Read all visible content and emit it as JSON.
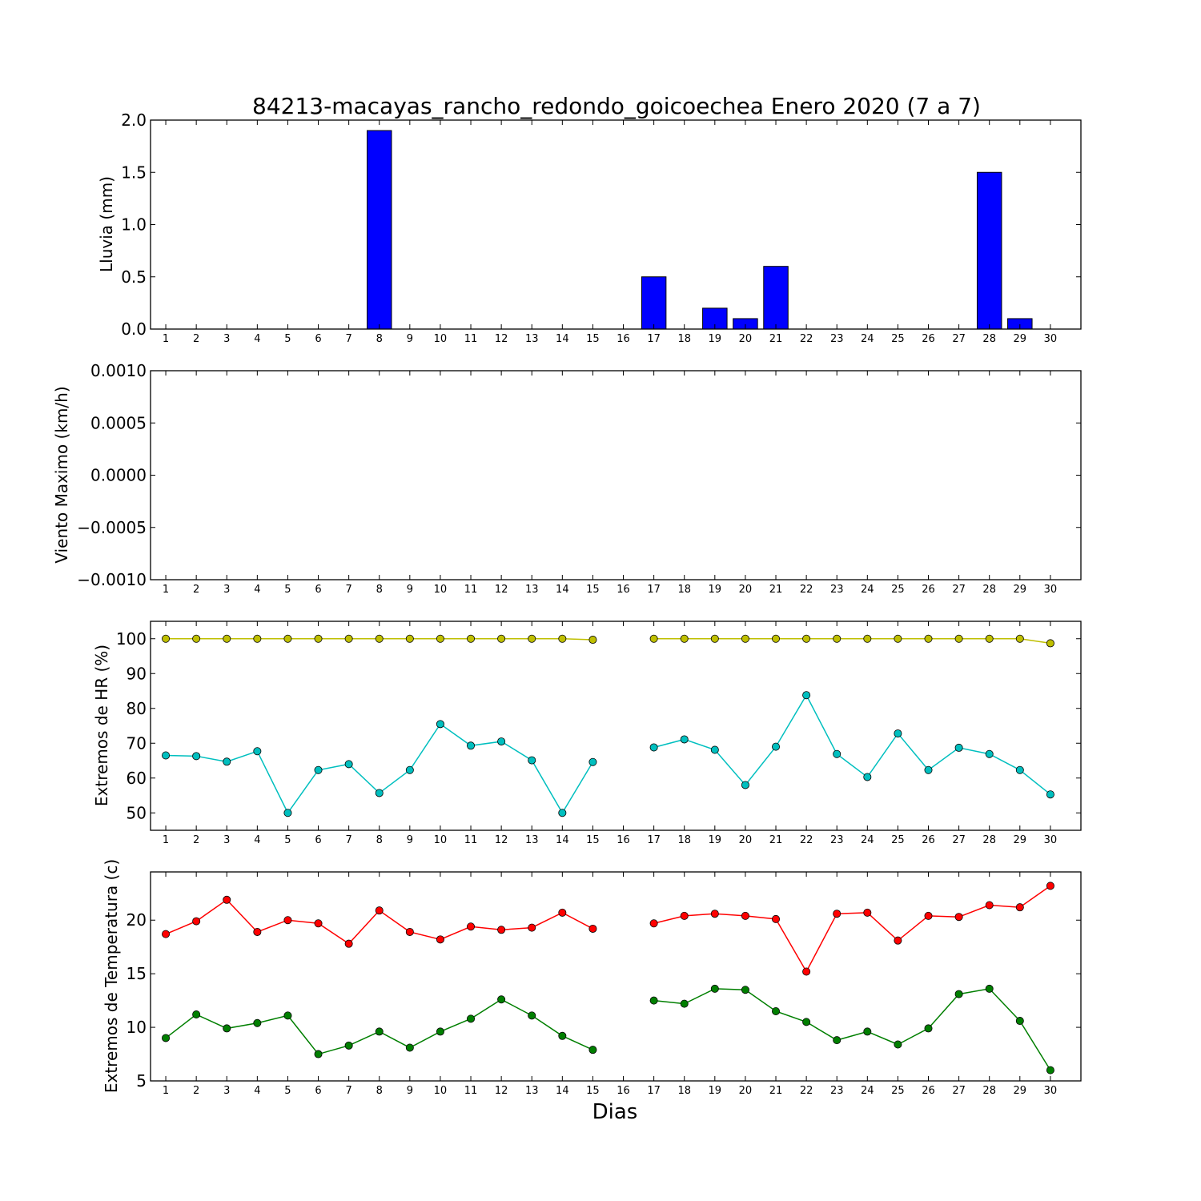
{
  "title": "84213-macayas_rancho_redondo_goicoechea Enero 2020  (7 a 7)",
  "xlabel": "Dias",
  "chart_data": [
    {
      "type": "bar",
      "ylabel": "Lluvia (mm)",
      "ylim": [
        0,
        2.0
      ],
      "yticks": [
        "0.0",
        "0.5",
        "1.0",
        "1.5",
        "2.0"
      ],
      "categories": [
        "1",
        "2",
        "3",
        "4",
        "5",
        "6",
        "7",
        "8",
        "9",
        "10",
        "11",
        "12",
        "13",
        "14",
        "15",
        "16",
        "17",
        "18",
        "19",
        "20",
        "21",
        "22",
        "23",
        "24",
        "25",
        "26",
        "27",
        "28",
        "29",
        "30"
      ],
      "values": [
        0,
        0,
        0,
        0,
        0,
        0,
        0,
        1.9,
        0,
        0,
        0,
        0,
        0,
        0,
        0,
        null,
        0.5,
        0,
        0.2,
        0.1,
        0.6,
        0,
        0,
        0,
        0,
        0,
        0,
        1.5,
        0.1,
        0
      ],
      "color": "#0000ff"
    },
    {
      "type": "line",
      "ylabel": "Viento Maximo (km/h)",
      "ylim": [
        -0.001,
        0.001
      ],
      "yticks": [
        "−0.0010",
        "−0.0005",
        "0.0000",
        "0.0005",
        "0.0010"
      ],
      "categories": [
        "1",
        "2",
        "3",
        "4",
        "5",
        "6",
        "7",
        "8",
        "9",
        "10",
        "11",
        "12",
        "13",
        "14",
        "15",
        "16",
        "17",
        "18",
        "19",
        "20",
        "21",
        "22",
        "23",
        "24",
        "25",
        "26",
        "27",
        "28",
        "29",
        "30"
      ],
      "series": []
    },
    {
      "type": "line",
      "ylabel": "Extremos de HR (%)",
      "ylim": [
        45,
        105
      ],
      "yticks": [
        "50",
        "60",
        "70",
        "80",
        "90",
        "100"
      ],
      "categories": [
        "1",
        "2",
        "3",
        "4",
        "5",
        "6",
        "7",
        "8",
        "9",
        "10",
        "11",
        "12",
        "13",
        "14",
        "15",
        "16",
        "17",
        "18",
        "19",
        "20",
        "21",
        "22",
        "23",
        "24",
        "25",
        "26",
        "27",
        "28",
        "29",
        "30"
      ],
      "series": [
        {
          "color": "#bfbf00",
          "values": [
            100,
            100,
            100,
            100,
            100,
            100,
            100,
            100,
            100,
            100,
            100,
            100,
            100,
            100,
            99.7,
            null,
            100,
            100,
            100,
            100,
            100,
            100,
            100,
            100,
            100,
            100,
            100,
            100,
            100,
            98.7
          ]
        },
        {
          "color": "#00bfbf",
          "values": [
            66.5,
            66.3,
            64.7,
            67.7,
            50,
            62.3,
            64,
            55.7,
            62.3,
            75.5,
            69.3,
            70.5,
            65.1,
            50,
            64.6,
            null,
            68.8,
            71.1,
            68.1,
            58,
            69,
            83.8,
            66.9,
            60.3,
            72.8,
            62.3,
            68.7,
            66.9,
            62.3,
            55.3
          ]
        }
      ]
    },
    {
      "type": "line",
      "ylabel": "Extremos de Temperatura (c)",
      "ylim": [
        5,
        24.5
      ],
      "yticks": [
        "5",
        "10",
        "15",
        "20"
      ],
      "categories": [
        "1",
        "2",
        "3",
        "4",
        "5",
        "6",
        "7",
        "8",
        "9",
        "10",
        "11",
        "12",
        "13",
        "14",
        "15",
        "16",
        "17",
        "18",
        "19",
        "20",
        "21",
        "22",
        "23",
        "24",
        "25",
        "26",
        "27",
        "28",
        "29",
        "30"
      ],
      "series": [
        {
          "color": "#ff0000",
          "values": [
            18.7,
            19.9,
            21.9,
            18.9,
            20,
            19.7,
            17.8,
            20.9,
            18.9,
            18.2,
            19.4,
            19.1,
            19.3,
            20.7,
            19.2,
            null,
            19.7,
            20.4,
            20.6,
            20.4,
            20.1,
            15.2,
            20.6,
            20.7,
            18.1,
            20.4,
            20.3,
            21.4,
            21.2,
            23.2
          ]
        },
        {
          "color": "#007f00",
          "values": [
            9,
            11.2,
            9.9,
            10.4,
            11.1,
            7.5,
            8.3,
            9.6,
            8.1,
            9.6,
            10.8,
            12.6,
            11.1,
            9.2,
            7.9,
            null,
            12.5,
            12.2,
            13.6,
            13.5,
            11.5,
            10.5,
            8.8,
            9.6,
            8.4,
            9.9,
            13.1,
            13.6,
            10.6,
            6
          ]
        }
      ]
    }
  ]
}
